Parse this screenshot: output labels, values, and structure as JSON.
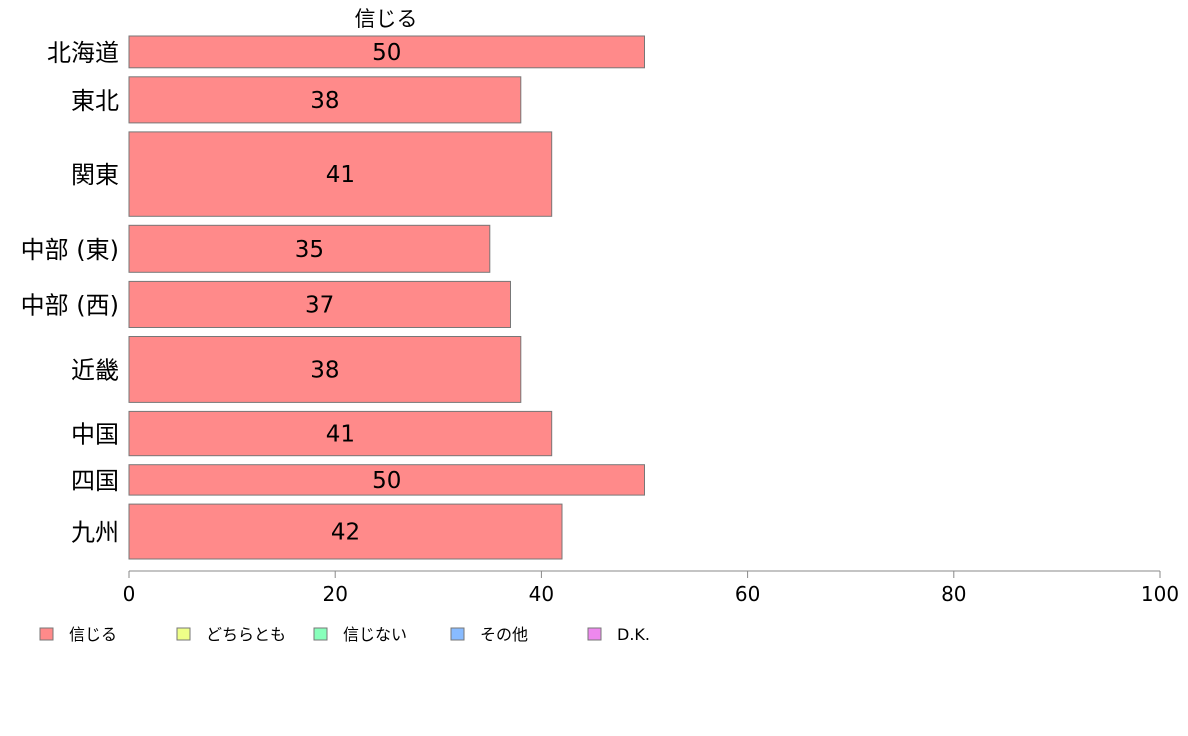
{
  "chart_data": {
    "type": "bar",
    "orientation": "horizontal",
    "title": "",
    "series": [
      {
        "name": "信じる",
        "color": "#ff8a8a"
      }
    ],
    "categories": [
      "北海道",
      "東北",
      "関東",
      "中部 (東)",
      "中部 (西)",
      "近畿",
      "中国",
      "四国",
      "九州"
    ],
    "category_weights": [
      0.69,
      1.0,
      1.83,
      1.02,
      1.0,
      1.43,
      0.96,
      0.66,
      1.19
    ],
    "values": [
      50,
      38,
      41,
      35,
      37,
      38,
      41,
      50,
      42
    ],
    "value_labels": [
      "50",
      "38",
      "41",
      "35",
      "37",
      "38",
      "41",
      "50",
      "42"
    ],
    "xlim": [
      0,
      100
    ],
    "xticks": [
      0,
      20,
      40,
      60,
      80,
      100
    ],
    "xtick_labels": [
      "0",
      "20",
      "40",
      "60",
      "80",
      "100"
    ],
    "grid": false,
    "legend": {
      "position": "bottom-left",
      "entries": [
        {
          "label": "信じる",
          "color": "#ff8a8a"
        },
        {
          "label": "どちらとも",
          "color": "#eeff88"
        },
        {
          "label": "信じない",
          "color": "#88ffbb"
        },
        {
          "label": "その他",
          "color": "#88bbff"
        },
        {
          "label": "D.K.",
          "color": "#ee88ee"
        }
      ]
    }
  }
}
